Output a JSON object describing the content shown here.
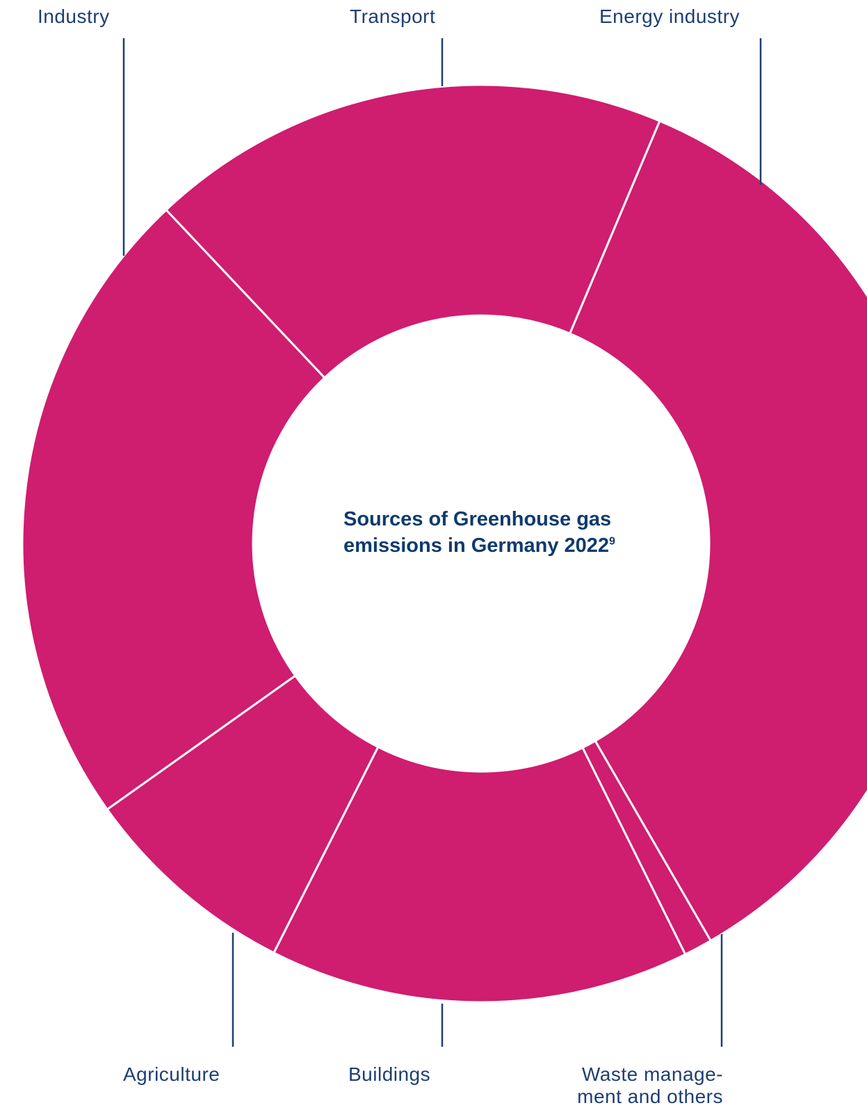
{
  "chart_data": {
    "type": "pie",
    "title": "Sources of Greenhouse gas emissions in Germany 2022",
    "title_footnote": "9",
    "colors": {
      "slice": "#cf1d6f",
      "separator": "#ffffff",
      "text": "#1e3f73",
      "leader": "#1e3f73"
    },
    "categories": [
      "Energy industry",
      "Waste manage-ment and others",
      "Buildings",
      "Agriculture",
      "Industry",
      "Transport"
    ],
    "labels": {
      "industry": "Industry",
      "transport": "Transport",
      "energy": "Energy industry",
      "agriculture": "Agriculture",
      "buildings": "Buildings",
      "waste_line1": "Waste manage-",
      "waste_line2": "ment and others"
    },
    "values": [
      35.3,
      1.0,
      14.8,
      7.7,
      22.8,
      18.4
    ],
    "unit": "percent (approx.)"
  }
}
